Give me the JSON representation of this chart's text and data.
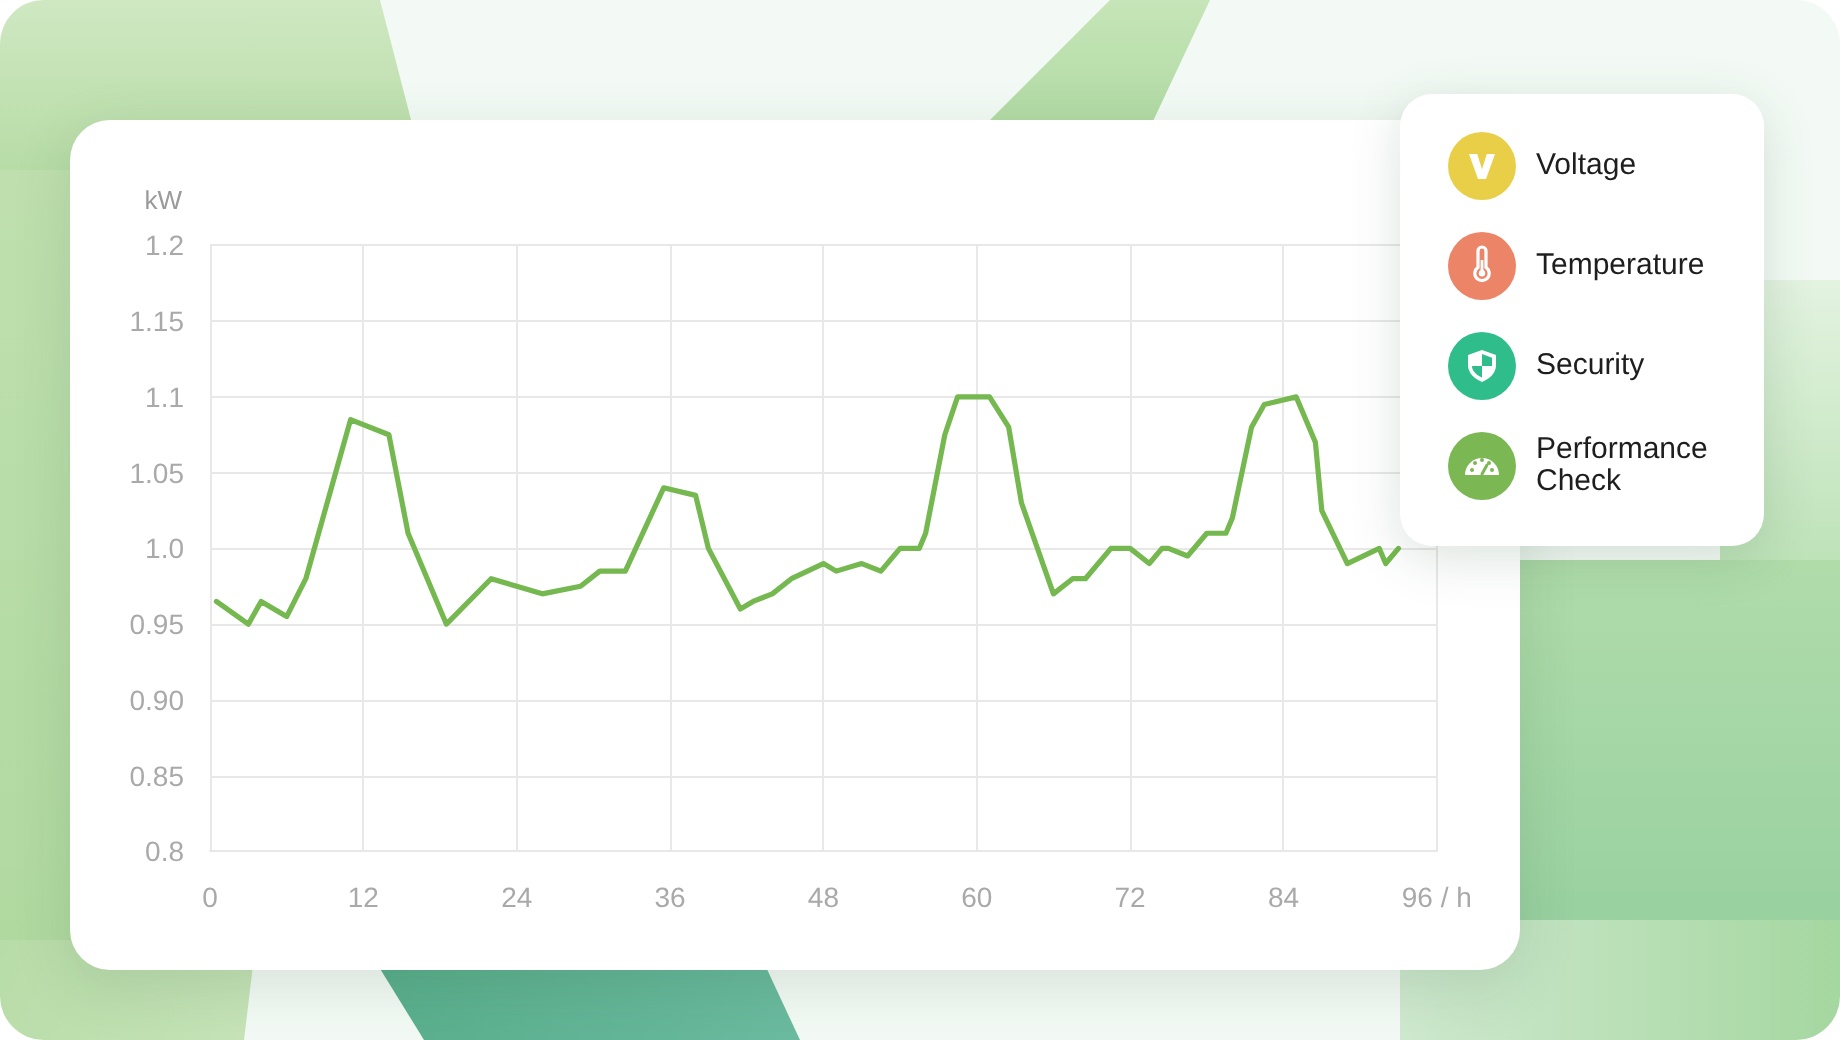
{
  "chart_data": [
    {
      "type": "line",
      "ylabel": "kW",
      "xlim": [
        0,
        96
      ],
      "xticks": [
        0,
        12,
        24,
        36,
        48,
        60,
        72,
        84,
        {
          "value": 96,
          "label": "96 / h"
        }
      ],
      "ylim": [
        0.8,
        1.2
      ],
      "yticks": [
        0.8,
        0.85,
        {
          "value": 0.9,
          "label": "0.90"
        },
        0.95,
        {
          "value": 1,
          "label": "1.0"
        },
        1.05,
        1.1,
        1.15,
        1.2
      ],
      "grid": true,
      "marker": "none",
      "line_style": "solid",
      "color": "#74b84f",
      "x": [
        0.5,
        3,
        4,
        6,
        7.5,
        10,
        11,
        14,
        15.5,
        18.5,
        22,
        24,
        26,
        29,
        30.5,
        32.5,
        35.5,
        38,
        39,
        41.5,
        42.5,
        44,
        45.5,
        48,
        49,
        51,
        52.5,
        54,
        55.5,
        56,
        57.5,
        58.5,
        61,
        62.5,
        63.5,
        66,
        67.5,
        68.5,
        70.5,
        72,
        73.5,
        74.5,
        75,
        76.5,
        78,
        79.5,
        80,
        81.5,
        82.5,
        85,
        86.5,
        87,
        89,
        91.5,
        92,
        93
      ],
      "values": [
        0.965,
        0.95,
        0.965,
        0.955,
        0.98,
        1.055,
        1.085,
        1.075,
        1.01,
        0.95,
        0.98,
        0.975,
        0.97,
        0.975,
        0.985,
        0.985,
        1.04,
        1.035,
        1.0,
        0.96,
        0.965,
        0.97,
        0.98,
        0.99,
        0.985,
        0.99,
        0.985,
        1.0,
        1.0,
        1.01,
        1.075,
        1.1,
        1.1,
        1.08,
        1.03,
        0.97,
        0.98,
        0.98,
        1.0,
        1.0,
        0.99,
        1.0,
        1.0,
        0.995,
        1.01,
        1.01,
        1.02,
        1.08,
        1.095,
        1.1,
        1.07,
        1.025,
        0.99,
        1.0,
        0.99,
        1.0
      ]
    },
    {
      "type": "other",
      "annotations": [
        "Voltage",
        "Temperature",
        "Security",
        "Performance Check"
      ]
    }
  ]
}
